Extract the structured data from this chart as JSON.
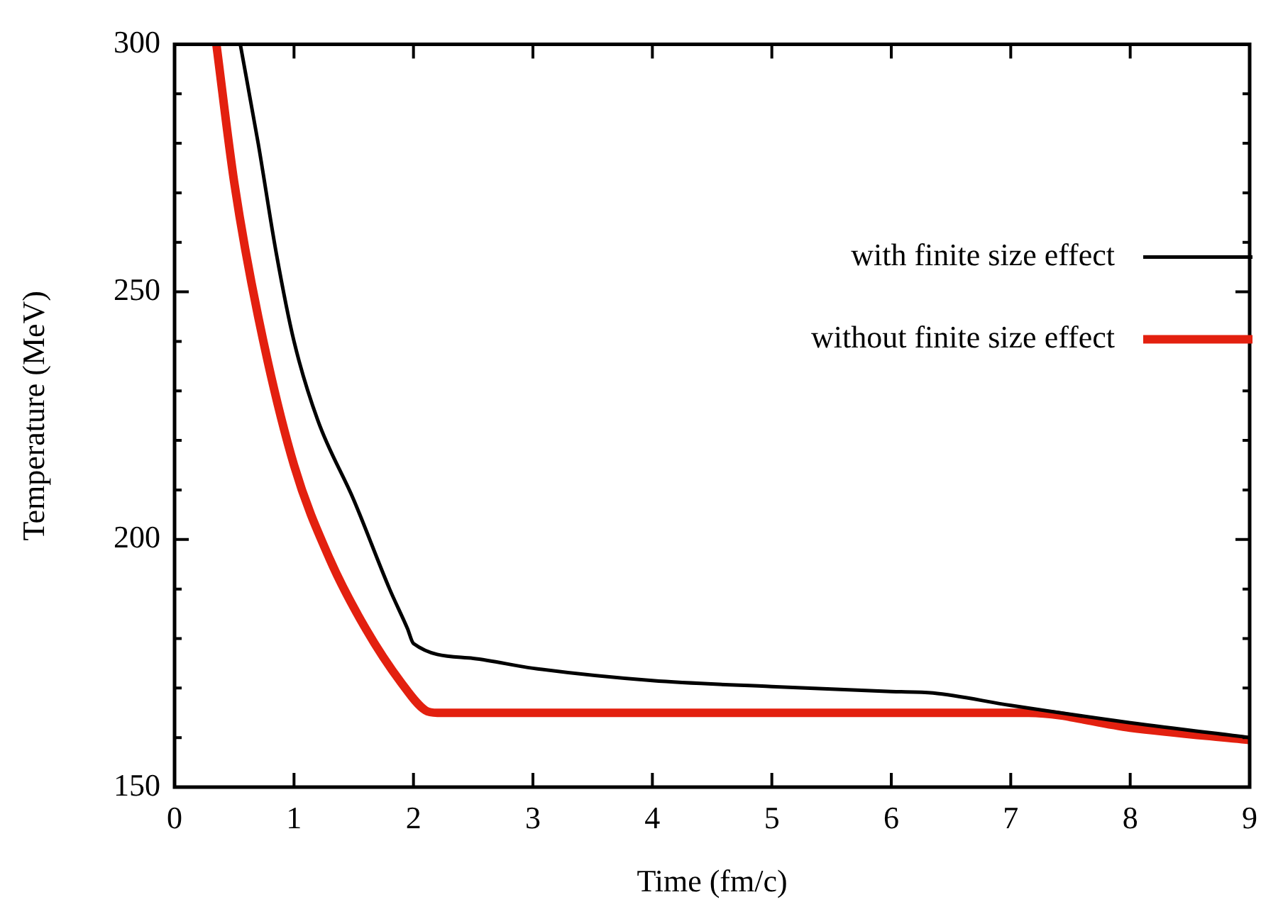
{
  "chart_data": {
    "type": "line",
    "xlabel": "Time (fm/c)",
    "ylabel": "Temperature (MeV)",
    "xlim": [
      0,
      9
    ],
    "xticks": [
      0,
      1,
      2,
      3,
      4,
      5,
      6,
      7,
      8,
      9
    ],
    "ylim": [
      150,
      300
    ],
    "yticks": [
      150,
      {
        "value": 160,
        "label": null
      },
      {
        "value": 170,
        "label": null
      },
      {
        "value": 180,
        "label": null
      },
      {
        "value": 190,
        "label": null
      },
      200,
      {
        "value": 210,
        "label": null
      },
      {
        "value": 220,
        "label": null
      },
      {
        "value": 230,
        "label": null
      },
      {
        "value": 240,
        "label": null
      },
      250,
      {
        "value": 260,
        "label": null
      },
      {
        "value": 270,
        "label": null
      },
      {
        "value": 280,
        "label": null
      },
      {
        "value": 290,
        "label": null
      },
      300
    ],
    "grid": false,
    "legend": "top right",
    "marker": "none",
    "line_style": "solid",
    "series": [
      {
        "name": "with finite size effect",
        "color": "#000000",
        "x": [
          0.55,
          0.7,
          0.85,
          1.0,
          1.2,
          1.5,
          1.8,
          1.95,
          2.0,
          2.5,
          3,
          4,
          5,
          6,
          6.35,
          7,
          8,
          9
        ],
        "values": [
          300,
          280,
          258,
          240,
          224,
          208,
          190,
          182,
          179,
          176,
          174,
          171.5,
          170.3,
          169.3,
          169,
          166.5,
          163,
          160
        ]
      },
      {
        "name": "without finite size effect",
        "color": "#e3200f",
        "x": [
          0.35,
          0.5,
          0.7,
          1.0,
          1.3,
          1.6,
          1.9,
          2.1,
          2.2,
          7.15,
          8,
          9
        ],
        "values": [
          300,
          272,
          245,
          215,
          196,
          182,
          171,
          165.5,
          165,
          165,
          162,
          159.5
        ]
      }
    ]
  }
}
